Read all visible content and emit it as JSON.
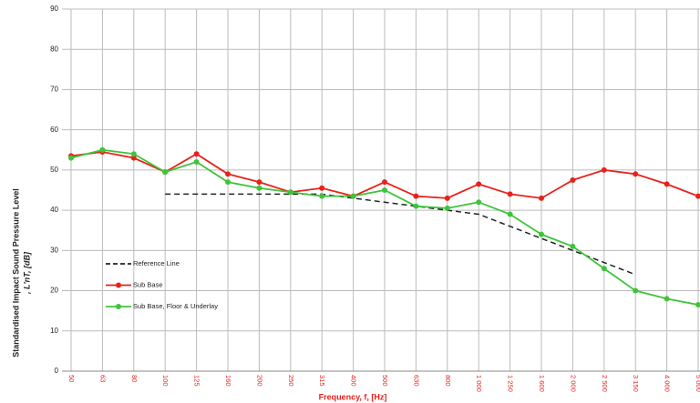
{
  "chart_data": {
    "type": "line",
    "y_label": [
      "Standardised Impact Sound Pressure Level",
      ", L'nT, [dB]"
    ],
    "x_label": "Frequency, f, [Hz]",
    "categories": [
      "50",
      "63",
      "80",
      "100",
      "125",
      "160",
      "200",
      "250",
      "315",
      "400",
      "500",
      "630",
      "800",
      "1 000",
      "1 250",
      "1 600",
      "2 000",
      "2 500",
      "3 150",
      "4 000",
      "5 000"
    ],
    "series": [
      {
        "name": "Reference Line",
        "color": "#222222",
        "dashed": true,
        "marker": false,
        "values": [
          null,
          null,
          null,
          44,
          44,
          44,
          44,
          44,
          44,
          43,
          42,
          41,
          40,
          39,
          36,
          33,
          30,
          27,
          24,
          null,
          null
        ]
      },
      {
        "name": "Sub Base",
        "color": "#e8221b",
        "dashed": false,
        "marker": true,
        "values": [
          53.5,
          54.5,
          53,
          49.5,
          54,
          49,
          47,
          44.5,
          45.5,
          43.5,
          47,
          43.5,
          43,
          46.5,
          44,
          43,
          47.5,
          50,
          49,
          46.5,
          43.5
        ]
      },
      {
        "name": "Sub Base, Floor & Underlay",
        "color": "#3ec43a",
        "dashed": false,
        "marker": true,
        "values": [
          53,
          55,
          54,
          49.5,
          52,
          47,
          45.5,
          44.5,
          43.5,
          43.5,
          45,
          41,
          40.5,
          42,
          39,
          34,
          31,
          25.5,
          20,
          18,
          16.5
        ]
      }
    ],
    "ylim": [
      0,
      90
    ],
    "yticks": [
      0,
      10,
      20,
      30,
      40,
      50,
      60,
      70,
      80,
      90
    ],
    "grid": true
  }
}
